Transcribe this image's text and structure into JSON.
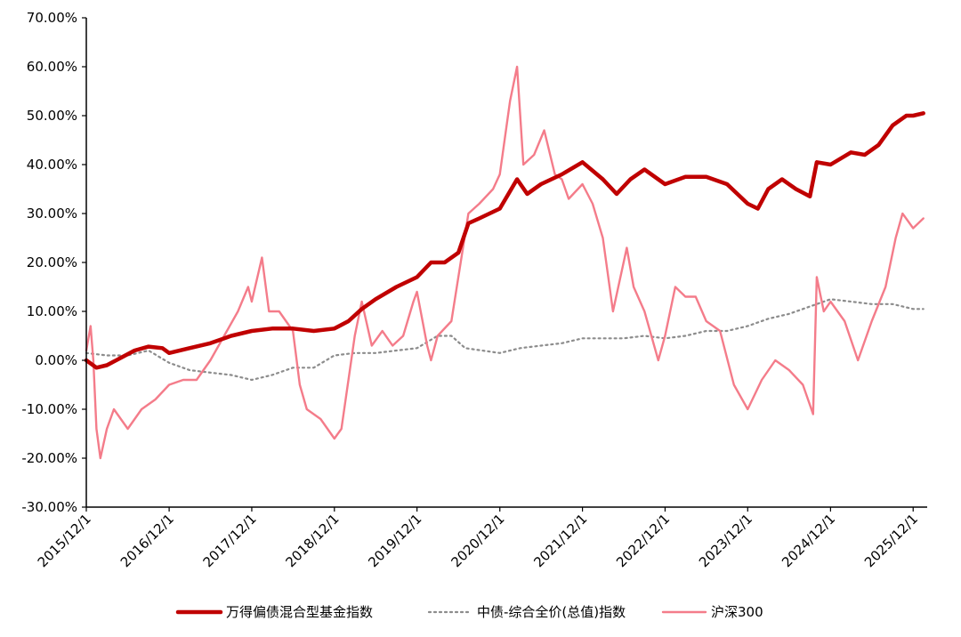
{
  "chart_data": {
    "type": "line",
    "title": "",
    "xlabel": "",
    "ylabel": "",
    "ylim": [
      -30,
      70
    ],
    "y_ticks": [
      -30,
      -20,
      -10,
      0,
      10,
      20,
      30,
      40,
      50,
      60,
      70
    ],
    "y_tick_labels": [
      "-30.00%",
      "-20.00%",
      "-10.00%",
      "0.00%",
      "10.00%",
      "20.00%",
      "30.00%",
      "40.00%",
      "50.00%",
      "60.00%",
      "70.00%"
    ],
    "x_range": [
      "2015-12-01",
      "2026-02-01"
    ],
    "x_ticks": [
      "2015-12-01",
      "2016-12-01",
      "2017-12-01",
      "2018-12-01",
      "2019-12-01",
      "2020-12-01",
      "2021-12-01",
      "2022-12-01",
      "2023-12-01",
      "2024-12-01",
      "2025-12-01"
    ],
    "x_tick_labels": [
      "2015/12/1",
      "2016/12/1",
      "2017/12/1",
      "2018/12/1",
      "2019/12/1",
      "2020/12/1",
      "2021/12/1",
      "2022/12/1",
      "2023/12/1",
      "2024/12/1",
      "2025/12/1"
    ],
    "grid": false,
    "legend_position": "bottom",
    "series": [
      {
        "name": "万得偏债混合型基金指数",
        "color": "#C00000",
        "style": "solid-thick",
        "points": [
          [
            "2015-12-01",
            0
          ],
          [
            "2016-01-15",
            -1.5
          ],
          [
            "2016-03-01",
            -1
          ],
          [
            "2016-05-01",
            0.5
          ],
          [
            "2016-07-01",
            2
          ],
          [
            "2016-09-01",
            2.8
          ],
          [
            "2016-11-01",
            2.5
          ],
          [
            "2016-12-01",
            1.5
          ],
          [
            "2017-03-01",
            2.5
          ],
          [
            "2017-06-01",
            3.5
          ],
          [
            "2017-09-01",
            5
          ],
          [
            "2017-12-01",
            6
          ],
          [
            "2018-03-01",
            6.5
          ],
          [
            "2018-06-01",
            6.5
          ],
          [
            "2018-09-01",
            6
          ],
          [
            "2018-12-01",
            6.5
          ],
          [
            "2019-02-01",
            8
          ],
          [
            "2019-04-01",
            10.5
          ],
          [
            "2019-06-01",
            12.5
          ],
          [
            "2019-09-01",
            15
          ],
          [
            "2019-12-01",
            17
          ],
          [
            "2020-02-01",
            20
          ],
          [
            "2020-04-01",
            20
          ],
          [
            "2020-06-01",
            22
          ],
          [
            "2020-07-15",
            28
          ],
          [
            "2020-09-01",
            29
          ],
          [
            "2020-12-01",
            31
          ],
          [
            "2021-02-15",
            37
          ],
          [
            "2021-04-01",
            34
          ],
          [
            "2021-06-01",
            36
          ],
          [
            "2021-09-01",
            38
          ],
          [
            "2021-12-01",
            40.5
          ],
          [
            "2022-03-01",
            37
          ],
          [
            "2022-05-01",
            34
          ],
          [
            "2022-07-01",
            37
          ],
          [
            "2022-09-01",
            39
          ],
          [
            "2022-12-01",
            36
          ],
          [
            "2023-03-01",
            37.5
          ],
          [
            "2023-06-01",
            37.5
          ],
          [
            "2023-09-01",
            36
          ],
          [
            "2023-12-01",
            32
          ],
          [
            "2024-01-15",
            31
          ],
          [
            "2024-03-01",
            35
          ],
          [
            "2024-05-01",
            37
          ],
          [
            "2024-07-01",
            35
          ],
          [
            "2024-09-01",
            33.5
          ],
          [
            "2024-10-01",
            40.5
          ],
          [
            "2024-12-01",
            40
          ],
          [
            "2025-03-01",
            42.5
          ],
          [
            "2025-05-01",
            42
          ],
          [
            "2025-07-01",
            44
          ],
          [
            "2025-09-01",
            48
          ],
          [
            "2025-11-01",
            50
          ],
          [
            "2025-12-01",
            50
          ],
          [
            "2026-01-15",
            50.5
          ]
        ]
      },
      {
        "name": "中债-综合全价(总值)指数",
        "color": "#8C8C8C",
        "style": "dotted",
        "points": [
          [
            "2015-12-01",
            1.5
          ],
          [
            "2016-03-01",
            1
          ],
          [
            "2016-06-01",
            1
          ],
          [
            "2016-09-01",
            2
          ],
          [
            "2016-12-01",
            -0.5
          ],
          [
            "2017-03-01",
            -2
          ],
          [
            "2017-06-01",
            -2.5
          ],
          [
            "2017-09-01",
            -3
          ],
          [
            "2017-12-01",
            -4
          ],
          [
            "2018-03-01",
            -3
          ],
          [
            "2018-06-01",
            -1.5
          ],
          [
            "2018-09-01",
            -1.5
          ],
          [
            "2018-12-01",
            1
          ],
          [
            "2019-03-01",
            1.5
          ],
          [
            "2019-06-01",
            1.5
          ],
          [
            "2019-09-01",
            2
          ],
          [
            "2019-12-01",
            2.5
          ],
          [
            "2020-03-01",
            5
          ],
          [
            "2020-05-01",
            5
          ],
          [
            "2020-07-01",
            2.5
          ],
          [
            "2020-12-01",
            1.5
          ],
          [
            "2021-03-01",
            2.5
          ],
          [
            "2021-06-01",
            3
          ],
          [
            "2021-09-01",
            3.5
          ],
          [
            "2021-12-01",
            4.5
          ],
          [
            "2022-03-01",
            4.5
          ],
          [
            "2022-06-01",
            4.5
          ],
          [
            "2022-09-01",
            5
          ],
          [
            "2022-12-01",
            4.5
          ],
          [
            "2023-03-01",
            5
          ],
          [
            "2023-06-01",
            6
          ],
          [
            "2023-09-01",
            6
          ],
          [
            "2023-12-01",
            7
          ],
          [
            "2024-03-01",
            8.5
          ],
          [
            "2024-06-01",
            9.5
          ],
          [
            "2024-09-01",
            11
          ],
          [
            "2024-12-01",
            12.5
          ],
          [
            "2025-03-01",
            12
          ],
          [
            "2025-06-01",
            11.5
          ],
          [
            "2025-09-01",
            11.5
          ],
          [
            "2025-12-01",
            10.5
          ],
          [
            "2026-01-15",
            10.5
          ]
        ]
      },
      {
        "name": "沪深300",
        "color": "#F47C8A",
        "style": "solid",
        "points": [
          [
            "2015-12-01",
            2
          ],
          [
            "2015-12-20",
            7
          ],
          [
            "2016-01-01",
            0
          ],
          [
            "2016-01-15",
            -14
          ],
          [
            "2016-02-01",
            -20
          ],
          [
            "2016-03-01",
            -14
          ],
          [
            "2016-04-01",
            -10
          ],
          [
            "2016-06-01",
            -14
          ],
          [
            "2016-08-01",
            -10
          ],
          [
            "2016-10-01",
            -8
          ],
          [
            "2016-12-01",
            -5
          ],
          [
            "2017-02-01",
            -4
          ],
          [
            "2017-04-01",
            -4
          ],
          [
            "2017-06-01",
            0
          ],
          [
            "2017-08-01",
            5
          ],
          [
            "2017-10-01",
            10
          ],
          [
            "2017-11-15",
            15
          ],
          [
            "2017-12-01",
            12
          ],
          [
            "2018-01-15",
            21
          ],
          [
            "2018-02-15",
            10
          ],
          [
            "2018-04-01",
            10
          ],
          [
            "2018-06-01",
            6
          ],
          [
            "2018-07-01",
            -5
          ],
          [
            "2018-08-01",
            -10
          ],
          [
            "2018-10-01",
            -12
          ],
          [
            "2018-12-01",
            -16
          ],
          [
            "2019-01-01",
            -14
          ],
          [
            "2019-03-01",
            5
          ],
          [
            "2019-04-01",
            12
          ],
          [
            "2019-05-15",
            3
          ],
          [
            "2019-07-01",
            6
          ],
          [
            "2019-08-15",
            3
          ],
          [
            "2019-10-01",
            5
          ],
          [
            "2019-11-15",
            12
          ],
          [
            "2019-12-01",
            14
          ],
          [
            "2020-01-15",
            3
          ],
          [
            "2020-02-01",
            0
          ],
          [
            "2020-03-01",
            5
          ],
          [
            "2020-05-01",
            8
          ],
          [
            "2020-07-15",
            30
          ],
          [
            "2020-09-01",
            32
          ],
          [
            "2020-11-01",
            35
          ],
          [
            "2020-12-01",
            38
          ],
          [
            "2021-01-15",
            53
          ],
          [
            "2021-02-15",
            60
          ],
          [
            "2021-03-15",
            40
          ],
          [
            "2021-05-01",
            42
          ],
          [
            "2021-06-15",
            47
          ],
          [
            "2021-08-01",
            38
          ],
          [
            "2021-09-01",
            37
          ],
          [
            "2021-10-01",
            33
          ],
          [
            "2021-12-01",
            36
          ],
          [
            "2022-01-15",
            32
          ],
          [
            "2022-03-01",
            25
          ],
          [
            "2022-04-15",
            10
          ],
          [
            "2022-06-15",
            23
          ],
          [
            "2022-07-15",
            15
          ],
          [
            "2022-09-01",
            10
          ],
          [
            "2022-11-01",
            0
          ],
          [
            "2022-12-01",
            5
          ],
          [
            "2023-01-15",
            15
          ],
          [
            "2023-03-01",
            13
          ],
          [
            "2023-04-15",
            13
          ],
          [
            "2023-06-01",
            8
          ],
          [
            "2023-08-01",
            6
          ],
          [
            "2023-10-01",
            -5
          ],
          [
            "2023-12-01",
            -10
          ],
          [
            "2024-02-01",
            -4
          ],
          [
            "2024-04-01",
            0
          ],
          [
            "2024-06-01",
            -2
          ],
          [
            "2024-08-01",
            -5
          ],
          [
            "2024-09-15",
            -11
          ],
          [
            "2024-10-01",
            17
          ],
          [
            "2024-11-01",
            10
          ],
          [
            "2024-12-01",
            12
          ],
          [
            "2025-02-01",
            8
          ],
          [
            "2025-04-01",
            0
          ],
          [
            "2025-06-01",
            8
          ],
          [
            "2025-08-01",
            15
          ],
          [
            "2025-09-15",
            25
          ],
          [
            "2025-10-15",
            30
          ],
          [
            "2025-12-01",
            27
          ],
          [
            "2026-01-15",
            29
          ]
        ]
      }
    ]
  }
}
